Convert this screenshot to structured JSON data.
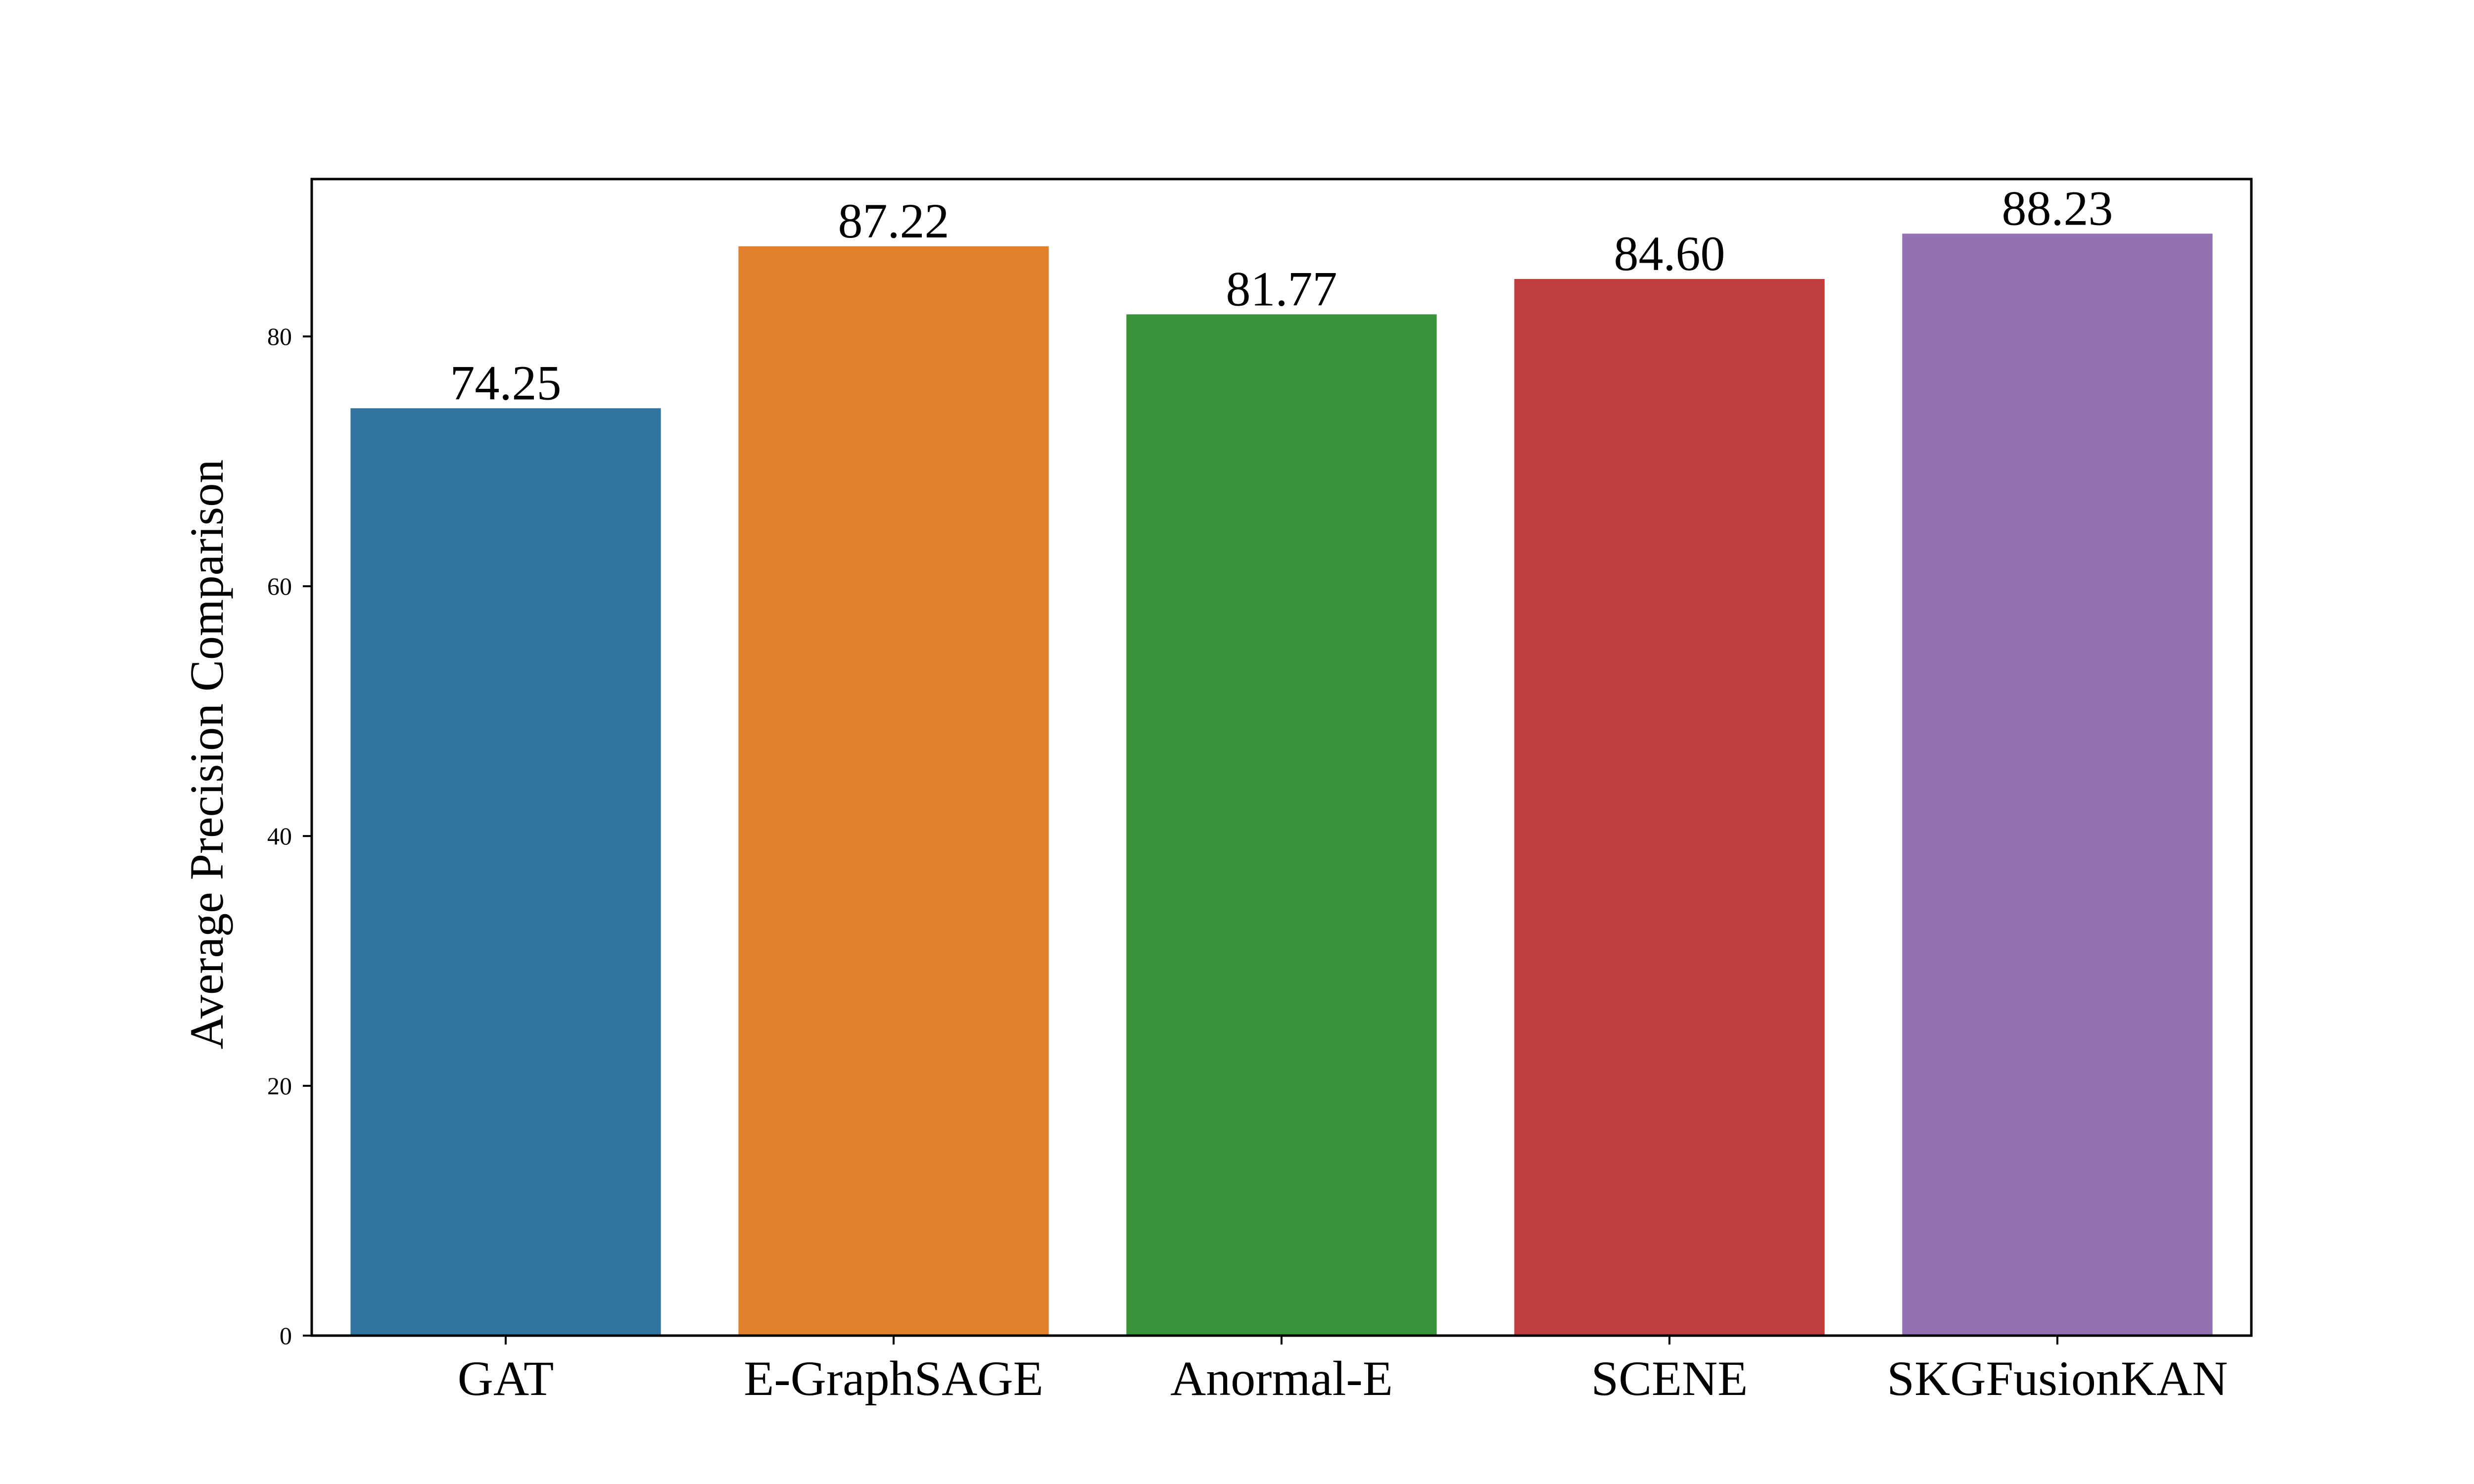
{
  "chart_data": {
    "type": "bar",
    "title": "",
    "xlabel": "",
    "ylabel": "Average Precision Comparison",
    "categories": [
      "GAT",
      "E-GraphSAGE",
      "Anormal-E",
      "SCENE",
      "SKGFusionKAN"
    ],
    "values": [
      74.25,
      87.22,
      81.77,
      84.6,
      88.23
    ],
    "value_labels": [
      "74.25",
      "87.22",
      "81.77",
      "84.60",
      "88.23"
    ],
    "colors": [
      "#3274a1",
      "#e1812c",
      "#3a923a",
      "#c03d3e",
      "#9372b2"
    ],
    "ylim": [
      0,
      92.6
    ],
    "yticks": [
      0,
      20,
      40,
      60,
      80
    ],
    "ytick_labels": [
      "0",
      "20",
      "40",
      "60",
      "80"
    ],
    "grid": false,
    "legend": "none"
  }
}
